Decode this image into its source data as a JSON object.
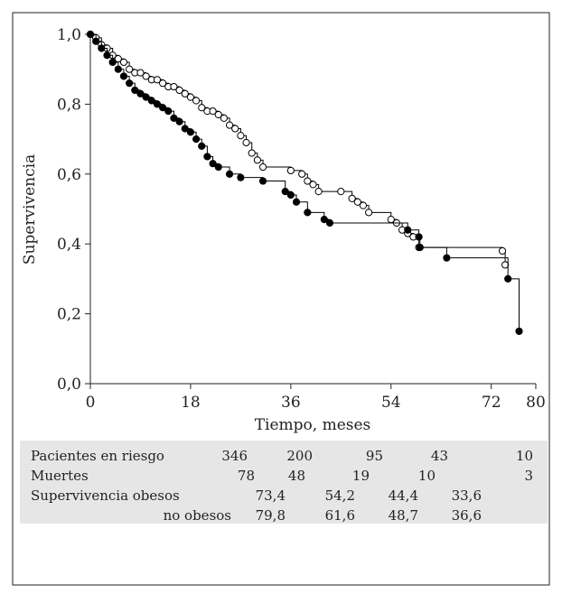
{
  "chart_data": {
    "type": "step",
    "y_label": "Supervivencia",
    "x_label": "Tiempo, meses",
    "xlim": [
      0,
      80
    ],
    "xticks": [
      0,
      18,
      36,
      54,
      72,
      80
    ],
    "ylim": [
      0,
      1
    ],
    "yticks": [
      {
        "value": 0,
        "label": "0,0"
      },
      {
        "value": 0.2,
        "label": "0,2"
      },
      {
        "value": 0.4,
        "label": "0,4"
      },
      {
        "value": 0.6,
        "label": "0,6"
      },
      {
        "value": 0.8,
        "label": "0,8"
      },
      {
        "value": 1,
        "label": "1,0"
      }
    ],
    "series": [
      {
        "color": "#000000",
        "marker_fill": "#ffffff",
        "x": [
          0,
          1,
          2,
          3,
          4,
          5,
          6,
          7,
          8,
          9,
          10,
          11,
          12,
          13,
          14,
          15,
          16,
          17,
          18,
          19,
          20,
          21,
          22,
          23,
          24,
          25,
          26,
          27,
          28,
          29,
          30,
          31,
          36,
          38,
          39,
          40,
          41,
          45,
          47,
          48,
          49,
          50,
          54,
          55,
          56,
          57,
          58,
          59,
          74,
          74.5
        ],
        "values": [
          1.0,
          0.99,
          0.97,
          0.96,
          0.94,
          0.93,
          0.92,
          0.9,
          0.89,
          0.89,
          0.88,
          0.87,
          0.87,
          0.86,
          0.85,
          0.85,
          0.84,
          0.83,
          0.82,
          0.81,
          0.79,
          0.78,
          0.78,
          0.77,
          0.76,
          0.74,
          0.73,
          0.71,
          0.69,
          0.66,
          0.64,
          0.62,
          0.61,
          0.6,
          0.58,
          0.57,
          0.55,
          0.55,
          0.53,
          0.52,
          0.51,
          0.49,
          0.47,
          0.46,
          0.44,
          0.43,
          0.42,
          0.39,
          0.38,
          0.34
        ]
      },
      {
        "color": "#000000",
        "marker_fill": "#000000",
        "x": [
          0,
          1,
          2,
          3,
          4,
          5,
          6,
          7,
          8,
          9,
          10,
          11,
          12,
          13,
          14,
          15,
          16,
          17,
          18,
          19,
          20,
          21,
          22,
          23,
          25,
          27,
          31,
          35,
          36,
          37,
          39,
          42,
          43,
          57,
          59,
          59.2,
          64,
          75,
          77
        ],
        "values": [
          1.0,
          0.98,
          0.96,
          0.94,
          0.92,
          0.9,
          0.88,
          0.86,
          0.84,
          0.83,
          0.82,
          0.81,
          0.8,
          0.79,
          0.78,
          0.76,
          0.75,
          0.73,
          0.72,
          0.7,
          0.68,
          0.65,
          0.63,
          0.62,
          0.6,
          0.59,
          0.58,
          0.55,
          0.54,
          0.52,
          0.49,
          0.47,
          0.46,
          0.44,
          0.42,
          0.39,
          0.36,
          0.3,
          0.15
        ]
      }
    ]
  },
  "table": {
    "rows": [
      [
        "Pacientes en riesgo",
        "346",
        "200",
        "95",
        "43",
        "10"
      ],
      [
        "Muertes",
        "78",
        "48",
        "19",
        "10",
        "3"
      ],
      [
        "Supervivencia obesos",
        "73,4",
        "54,2",
        "44,4",
        "33,6"
      ],
      [
        "no obesos",
        "79,8",
        "61,6",
        "48,7",
        "36,6"
      ]
    ]
  }
}
